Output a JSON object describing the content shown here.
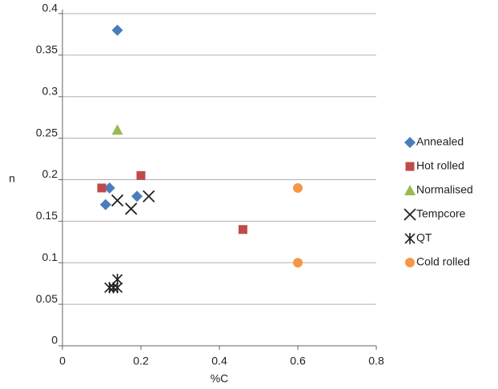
{
  "chart_data": {
    "type": "scatter",
    "x_label": "%C",
    "y_label": "n",
    "xlim": [
      0,
      0.8
    ],
    "xticks": [
      0,
      0.2,
      0.4,
      0.6,
      0.8
    ],
    "ylim": [
      0,
      0.4
    ],
    "yticks": [
      0,
      0.05,
      0.1,
      0.15,
      0.2,
      0.25,
      0.3,
      0.35,
      0.4
    ],
    "grid": true,
    "legend": "right",
    "series": [
      {
        "name": "Annealed",
        "color": "#4a7ebb",
        "marker": "diamond",
        "x": [
          0.14,
          0.12,
          0.11,
          0.19
        ],
        "y": [
          0.38,
          0.19,
          0.17,
          0.18
        ]
      },
      {
        "name": "Hot rolled",
        "color": "#be4b48",
        "marker": "square",
        "x": [
          0.1,
          0.2,
          0.46
        ],
        "y": [
          0.19,
          0.205,
          0.14
        ]
      },
      {
        "name": "Normalised",
        "color": "#98b954",
        "marker": "triangle",
        "x": [
          0.14
        ],
        "y": [
          0.26
        ]
      },
      {
        "name": "Tempcore",
        "color": "#222222",
        "marker": "x",
        "x": [
          0.14,
          0.175,
          0.22
        ],
        "y": [
          0.175,
          0.165,
          0.18
        ]
      },
      {
        "name": "QT",
        "color": "#222222",
        "marker": "asterisk",
        "x": [
          0.13,
          0.14,
          0.14,
          0.12
        ],
        "y": [
          0.07,
          0.08,
          0.07,
          0.07
        ]
      },
      {
        "name": "Cold rolled",
        "color": "#f79646",
        "marker": "circle",
        "x": [
          0.6,
          0.6
        ],
        "y": [
          0.19,
          0.1
        ]
      }
    ]
  }
}
